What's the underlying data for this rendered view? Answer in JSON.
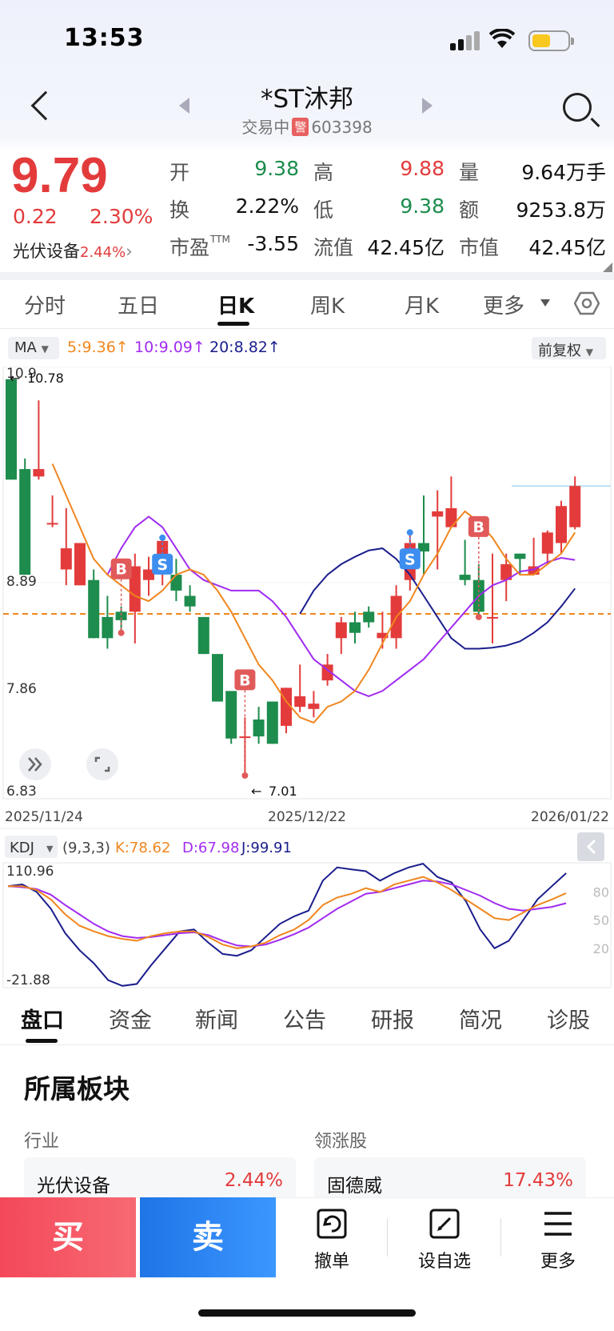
{
  "status": {
    "time": "13:53"
  },
  "header": {
    "title": "*ST沐邦",
    "status": "交易中",
    "warn_badge": "警",
    "code": "603398"
  },
  "quote": {
    "price": "9.79",
    "change": "0.22",
    "change_pct": "2.30%",
    "sector": "光伏设备",
    "sector_pct": "2.44%",
    "fields": [
      {
        "label": "开",
        "value": "9.38",
        "color": "green"
      },
      {
        "label": "高",
        "value": "9.88",
        "color": "red"
      },
      {
        "label": "量",
        "value": "9.64万手",
        "color": "black"
      },
      {
        "label": "换",
        "value": "2.22%",
        "color": "black"
      },
      {
        "label": "低",
        "value": "9.38",
        "color": "green"
      },
      {
        "label": "额",
        "value": "9253.8万",
        "color": "black"
      },
      {
        "label": "市盈",
        "sup": "TTM",
        "value": "-3.55",
        "color": "black"
      },
      {
        "label": "流值",
        "value": "42.45亿",
        "color": "black"
      },
      {
        "label": "市值",
        "value": "42.45亿",
        "color": "black"
      }
    ]
  },
  "period_tabs": [
    "分时",
    "五日",
    "日K",
    "周K",
    "月K",
    "更多"
  ],
  "active_period": "日K",
  "ma": {
    "selector": "MA",
    "items": [
      "5:9.36",
      "10:9.09",
      "20:8.82"
    ],
    "adjust": "前复权"
  },
  "kdj": {
    "selector": "KDJ",
    "params": "(9,3,3)",
    "k": "K:78.62",
    "d": "D:67.98",
    "j": "J:99.91",
    "max": "110.96",
    "min": "-21.88",
    "levels": [
      "80",
      "50",
      "20"
    ]
  },
  "colors": {
    "up": "#e33b3b",
    "down": "#1d8c4d",
    "ma5": "#f0861e",
    "ma10": "#a12bf0",
    "ma20": "#1b1e8c"
  },
  "chart_data": {
    "type": "candlestick",
    "y_labels": [
      "10.9",
      "8.89",
      "7.86",
      "6.83"
    ],
    "ylim": [
      6.83,
      10.92
    ],
    "x_labels": [
      "2025/11/24",
      "2025/12/22",
      "2026/01/22"
    ],
    "high_marker": "10.78",
    "low_marker": "7.01",
    "ref_price": 8.58,
    "candles": [
      [
        10.8,
        9.85,
        10.78,
        9.85
      ],
      [
        9.95,
        8.95,
        10.05,
        8.95
      ],
      [
        9.88,
        9.95,
        10.6,
        9.85
      ],
      [
        9.44,
        9.44,
        9.7,
        9.4
      ],
      [
        9.0,
        9.2,
        9.58,
        8.85
      ],
      [
        8.85,
        9.25,
        9.25,
        8.85
      ],
      [
        8.9,
        8.35,
        9.0,
        8.35
      ],
      [
        8.55,
        8.35,
        8.75,
        8.25
      ],
      [
        8.6,
        8.52,
        8.65,
        8.4
      ],
      [
        8.6,
        9.03,
        9.15,
        8.3
      ],
      [
        8.9,
        9.0,
        9.12,
        8.75
      ],
      [
        8.97,
        9.27,
        9.3,
        8.85
      ],
      [
        8.95,
        8.8,
        9.1,
        8.7
      ],
      [
        8.75,
        8.65,
        8.85,
        8.6
      ],
      [
        8.55,
        8.2,
        8.55,
        8.2
      ],
      [
        8.2,
        7.75,
        8.15,
        7.75
      ],
      [
        7.85,
        7.4,
        7.6,
        7.35
      ],
      [
        7.42,
        7.42,
        7.6,
        7.05
      ],
      [
        7.58,
        7.42,
        7.7,
        7.35
      ],
      [
        7.75,
        7.35,
        7.75,
        7.35
      ],
      [
        7.52,
        7.88,
        7.88,
        7.45
      ],
      [
        7.7,
        7.8,
        8.1,
        7.65
      ],
      [
        7.68,
        7.73,
        7.85,
        7.6
      ],
      [
        7.95,
        8.1,
        8.2,
        7.9
      ],
      [
        8.35,
        8.5,
        8.55,
        8.2
      ],
      [
        8.5,
        8.4,
        8.6,
        8.3
      ],
      [
        8.6,
        8.5,
        8.65,
        8.45
      ],
      [
        8.35,
        8.4,
        8.6,
        8.25
      ],
      [
        8.35,
        8.75,
        8.85,
        8.25
      ],
      [
        8.9,
        9.25,
        9.35,
        8.8
      ],
      [
        9.25,
        9.17,
        9.7,
        8.95
      ],
      [
        9.5,
        9.55,
        9.75,
        9.0
      ],
      [
        9.4,
        9.58,
        9.88,
        9.4
      ],
      [
        8.95,
        8.9,
        9.28,
        8.85
      ],
      [
        8.9,
        8.6,
        9.05,
        8.55
      ],
      [
        8.55,
        8.55,
        9.15,
        8.3
      ],
      [
        8.9,
        9.05,
        9.15,
        8.7
      ],
      [
        9.15,
        9.1,
        9.15,
        8.95
      ],
      [
        8.95,
        9.03,
        9.3,
        8.95
      ],
      [
        9.15,
        9.35,
        9.37,
        9.05
      ],
      [
        9.25,
        9.6,
        9.65,
        9.15
      ],
      [
        9.4,
        9.79,
        9.88,
        9.38
      ]
    ],
    "ma5": [
      10.0,
      9.7,
      9.4,
      9.1,
      8.95,
      8.85,
      8.75,
      8.7,
      8.8,
      8.95,
      9.0,
      8.95,
      8.8,
      8.6,
      8.35,
      8.1,
      7.95,
      7.75,
      7.6,
      7.55,
      7.7,
      7.75,
      7.85,
      8.05,
      8.3,
      8.55,
      8.7,
      8.95,
      9.15,
      9.4,
      9.55,
      9.45,
      9.3,
      9.1,
      8.95,
      8.95,
      9.05,
      9.15,
      9.35
    ],
    "ma10": [
      8.95,
      9.2,
      9.4,
      9.5,
      9.4,
      9.2,
      9.0,
      8.9,
      8.85,
      8.8,
      8.8,
      8.8,
      8.7,
      8.55,
      8.35,
      8.15,
      8.05,
      7.95,
      7.85,
      7.8,
      7.85,
      7.95,
      8.05,
      8.15,
      8.3,
      8.45,
      8.6,
      8.75,
      8.85,
      8.9,
      8.98,
      9.0,
      9.07,
      9.11,
      9.09
    ],
    "ma20": [
      8.58,
      8.8,
      8.95,
      9.05,
      9.12,
      9.18,
      9.2,
      9.1,
      8.95,
      8.75,
      8.55,
      8.35,
      8.25,
      8.25,
      8.26,
      8.28,
      8.32,
      8.4,
      8.5,
      8.65,
      8.82
    ],
    "signals": [
      {
        "label": "B",
        "candle": 8
      },
      {
        "label": "S",
        "candle": 11
      },
      {
        "label": "B",
        "candle": 17
      },
      {
        "label": "S",
        "candle": 29
      },
      {
        "label": "B",
        "candle": 34
      }
    ]
  }
}
